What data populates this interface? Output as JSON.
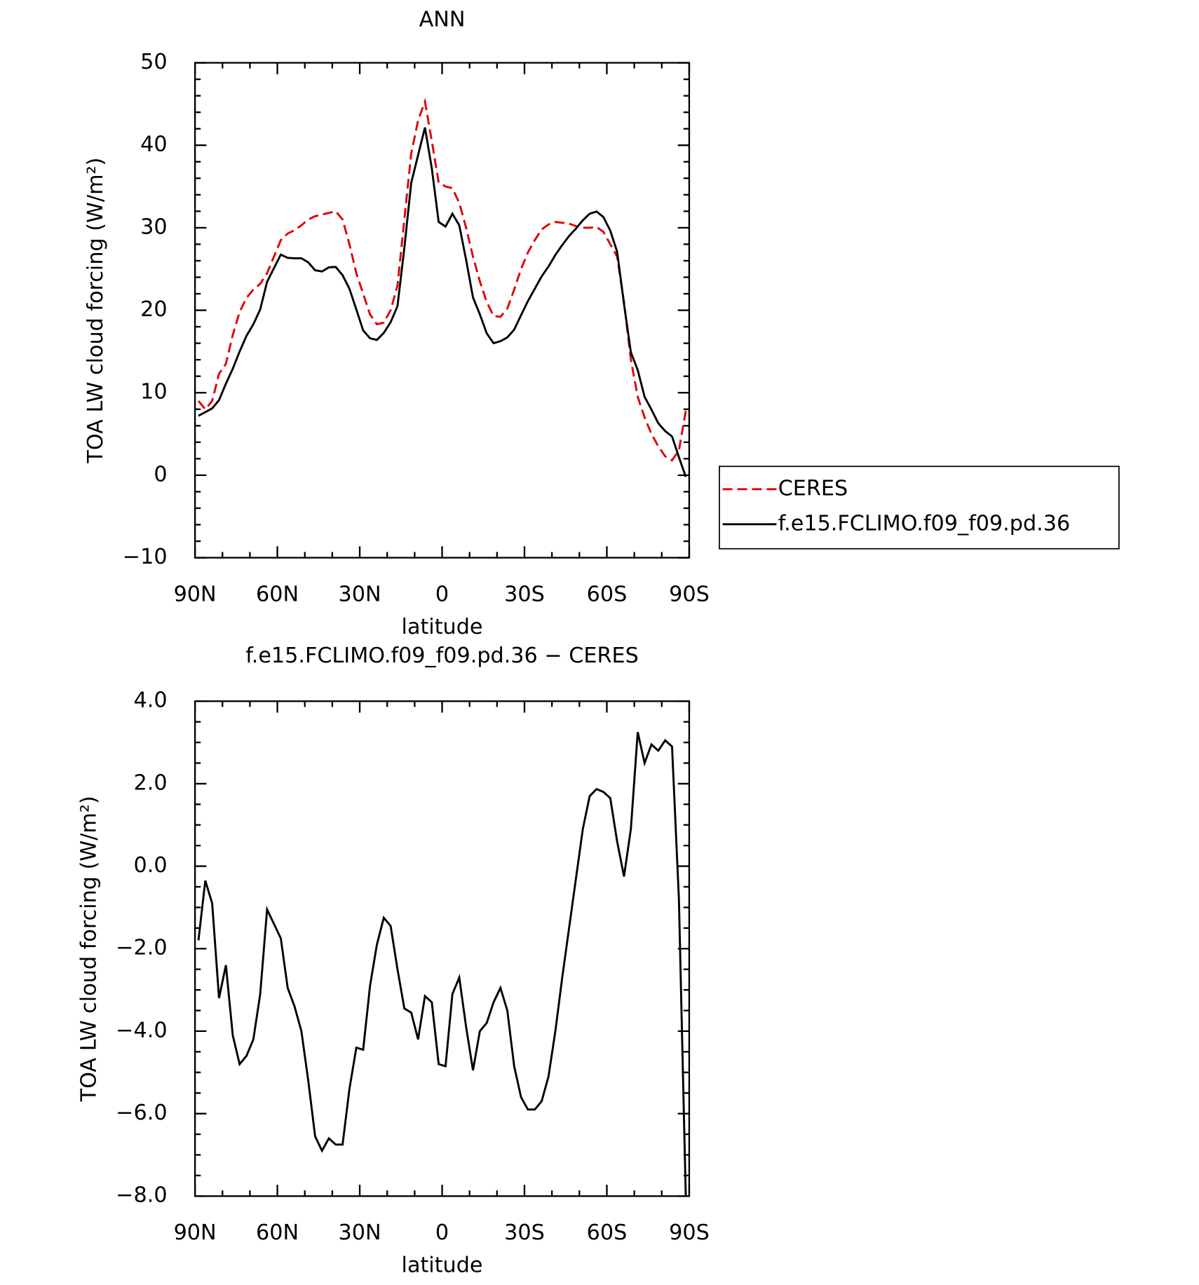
{
  "chart_data": [
    {
      "type": "line",
      "title": "ANN",
      "xlabel": "latitude",
      "ylabel": "TOA LW cloud forcing (W/m²)",
      "x": [
        88.75,
        86.25,
        83.75,
        81.25,
        78.75,
        76.25,
        73.75,
        71.25,
        68.75,
        66.25,
        63.75,
        61.25,
        58.75,
        56.25,
        53.75,
        51.25,
        48.75,
        46.25,
        43.75,
        41.25,
        38.75,
        36.25,
        33.75,
        31.25,
        28.75,
        26.25,
        23.75,
        21.25,
        18.75,
        16.25,
        13.75,
        11.25,
        8.75,
        6.25,
        3.75,
        1.25,
        -1.25,
        -3.75,
        -6.25,
        -8.75,
        -11.25,
        -13.75,
        -16.25,
        -18.75,
        -21.25,
        -23.75,
        -26.25,
        -28.75,
        -31.25,
        -33.75,
        -36.25,
        -38.75,
        -41.25,
        -43.75,
        -46.25,
        -48.75,
        -51.25,
        -53.75,
        -56.25,
        -58.75,
        -61.25,
        -63.75,
        -66.25,
        -68.75,
        -71.25,
        -73.75,
        -76.25,
        -78.75,
        -81.25,
        -83.75,
        -86.25,
        -88.75
      ],
      "series": [
        {
          "name": "CERES",
          "color": "#e00000",
          "style": "dashed",
          "values": [
            9,
            8,
            9,
            12.3,
            13.5,
            17,
            19.8,
            21.5,
            22.5,
            23.2,
            24.5,
            26.5,
            28.5,
            29.3,
            29.7,
            30.3,
            31,
            31.4,
            31.6,
            31.8,
            32,
            31,
            28,
            24.5,
            22,
            19.5,
            18.3,
            18.5,
            20,
            23,
            31,
            39,
            43,
            45.3,
            40.5,
            35.5,
            35,
            34.8,
            33,
            30,
            26.5,
            23.5,
            21,
            19.3,
            19.2,
            20.2,
            22.5,
            25,
            27,
            28.5,
            29.8,
            30.4,
            30.7,
            30.6,
            30.5,
            30.2,
            30,
            30,
            30.1,
            29.5,
            28,
            26.5,
            21,
            14,
            9.5,
            7,
            5,
            3.5,
            2.3,
            1.8,
            3,
            7.8
          ]
        },
        {
          "name": "f.e15.FCLIMO.f09_f09.pd.36",
          "color": "#000000",
          "style": "solid",
          "values": [
            7.2,
            7.65,
            8.1,
            9.1,
            11.1,
            12.9,
            15,
            16.9,
            18.3,
            20.1,
            23.45,
            25.1,
            26.75,
            26.35,
            26.3,
            26.3,
            25.8,
            24.85,
            24.7,
            25.2,
            25.25,
            24.25,
            22.6,
            20.1,
            17.55,
            16.6,
            16.4,
            17.25,
            18.55,
            20.5,
            27.55,
            35.45,
            38.8,
            42.15,
            37.2,
            30.7,
            30.15,
            31.7,
            30.3,
            26.1,
            21.55,
            19.5,
            17.2,
            16,
            16.25,
            16.7,
            17.65,
            19.4,
            21.1,
            22.6,
            24.1,
            25.3,
            26.7,
            27.9,
            29,
            29.9,
            30.9,
            31.7,
            31.97,
            31.3,
            29.65,
            27.1,
            20.75,
            14.9,
            12.75,
            9.5,
            7.95,
            6.3,
            5.35,
            4.7,
            2.2,
            -0.2
          ]
        }
      ],
      "xlim": [
        90,
        -90
      ],
      "xticks": [
        {
          "value": 90,
          "label": "90N"
        },
        {
          "value": 60,
          "label": "60N"
        },
        {
          "value": 30,
          "label": "30N"
        },
        0,
        {
          "value": -30,
          "label": "30S"
        },
        {
          "value": -60,
          "label": "60S"
        },
        {
          "value": -90,
          "label": "90S"
        }
      ],
      "xminorticks": [
        80,
        70,
        50,
        40,
        20,
        10,
        -10,
        -20,
        -40,
        -50,
        -70,
        -80
      ],
      "ylim": [
        -10,
        50
      ],
      "yticks": [
        {
          "value": -10,
          "label": "−10"
        },
        0,
        10,
        20,
        30,
        40,
        50
      ],
      "yminorticks": [
        -8,
        -6,
        -4,
        -2,
        2,
        4,
        6,
        8,
        12,
        14,
        16,
        18,
        22,
        24,
        26,
        28,
        32,
        34,
        36,
        38,
        42,
        44,
        46,
        48
      ],
      "legend": "right"
    },
    {
      "type": "line",
      "title": "f.e15.FCLIMO.f09_f09.pd.36 − CERES",
      "xlabel": "latitude",
      "ylabel": "TOA LW cloud forcing (W/m²)",
      "x": [
        88.75,
        86.25,
        83.75,
        81.25,
        78.75,
        76.25,
        73.75,
        71.25,
        68.75,
        66.25,
        63.75,
        61.25,
        58.75,
        56.25,
        53.75,
        51.25,
        48.75,
        46.25,
        43.75,
        41.25,
        38.75,
        36.25,
        33.75,
        31.25,
        28.75,
        26.25,
        23.75,
        21.25,
        18.75,
        16.25,
        13.75,
        11.25,
        8.75,
        6.25,
        3.75,
        1.25,
        -1.25,
        -3.75,
        -6.25,
        -8.75,
        -11.25,
        -13.75,
        -16.25,
        -18.75,
        -21.25,
        -23.75,
        -26.25,
        -28.75,
        -31.25,
        -33.75,
        -36.25,
        -38.75,
        -41.25,
        -43.75,
        -46.25,
        -48.75,
        -51.25,
        -53.75,
        -56.25,
        -58.75,
        -61.25,
        -63.75,
        -66.25,
        -68.75,
        -71.25,
        -73.75,
        -76.25,
        -78.75,
        -81.25,
        -83.75,
        -86.25,
        -88.75
      ],
      "series": [
        {
          "color": "#000000",
          "style": "solid",
          "values": [
            -1.8,
            -0.35,
            -0.9,
            -3.2,
            -2.4,
            -4.1,
            -4.8,
            -4.6,
            -4.2,
            -3.1,
            -1.05,
            -1.4,
            -1.75,
            -2.95,
            -3.4,
            -4,
            -5.2,
            -6.55,
            -6.9,
            -6.6,
            -6.75,
            -6.75,
            -5.4,
            -4.4,
            -4.45,
            -2.9,
            -1.9,
            -1.25,
            -1.45,
            -2.5,
            -3.45,
            -3.55,
            -4.2,
            -3.15,
            -3.3,
            -4.8,
            -4.85,
            -3.1,
            -2.7,
            -3.9,
            -4.95,
            -4,
            -3.8,
            -3.3,
            -2.95,
            -3.5,
            -4.85,
            -5.6,
            -5.9,
            -5.9,
            -5.7,
            -5.1,
            -4,
            -2.7,
            -1.5,
            -0.3,
            0.9,
            1.7,
            1.87,
            1.8,
            1.65,
            0.6,
            -0.25,
            0.9,
            3.25,
            2.5,
            2.95,
            2.8,
            3.05,
            2.9,
            -0.8,
            -8
          ]
        }
      ],
      "xlim": [
        90,
        -90
      ],
      "xticks": [
        {
          "value": 90,
          "label": "90N"
        },
        {
          "value": 60,
          "label": "60N"
        },
        {
          "value": 30,
          "label": "30N"
        },
        0,
        {
          "value": -30,
          "label": "30S"
        },
        {
          "value": -60,
          "label": "60S"
        },
        {
          "value": -90,
          "label": "90S"
        }
      ],
      "xminorticks": [
        80,
        70,
        50,
        40,
        20,
        10,
        -10,
        -20,
        -40,
        -50,
        -70,
        -80
      ],
      "ylim": [
        -8,
        4
      ],
      "yticks": [
        {
          "value": -8,
          "label": "−8.0"
        },
        {
          "value": -6,
          "label": "−6.0"
        },
        {
          "value": -4,
          "label": "−4.0"
        },
        {
          "value": -2,
          "label": "−2.0"
        },
        {
          "value": 0,
          "label": "0.0"
        },
        {
          "value": 2,
          "label": "2.0"
        },
        {
          "value": 4,
          "label": "4.0"
        }
      ],
      "yminorticks": [
        -7.5,
        -7,
        -6.5,
        -5.5,
        -5,
        -4.5,
        -3.5,
        -3,
        -2.5,
        -1.5,
        -1,
        -0.5,
        0.5,
        1,
        1.5,
        2.5,
        3,
        3.5
      ]
    }
  ]
}
